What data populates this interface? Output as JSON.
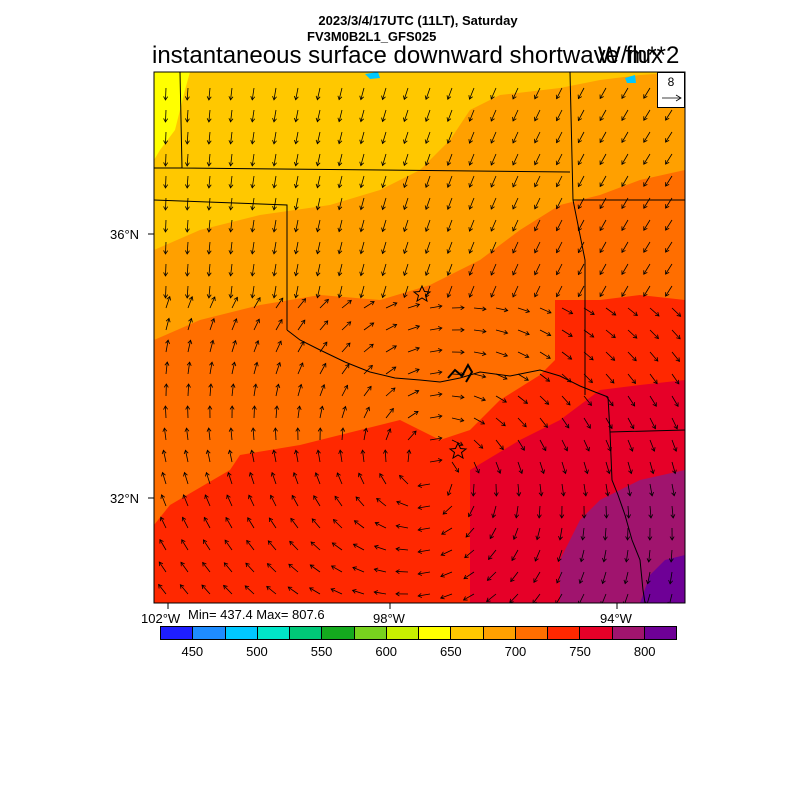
{
  "header": {
    "run_title": "2023/3/4/17UTC (11LT), Saturday",
    "model_name": "FV3M0B2L1_GFS025",
    "main_title": "instantaneous surface downward shortwave flux",
    "units": "W/m**2"
  },
  "reference_vector": {
    "magnitude": "8"
  },
  "lat_labels": [
    "36°N",
    "32°N"
  ],
  "lon_labels": [
    "102°W",
    "98°W",
    "94°W"
  ],
  "stats": "Min= 437.4 Max= 807.6",
  "colorbar": {
    "colors": [
      "#1e1eff",
      "#1e8cff",
      "#00c8ff",
      "#00e6c8",
      "#00c878",
      "#14aa1e",
      "#78d21e",
      "#c8f000",
      "#ffff00",
      "#ffc800",
      "#ffa000",
      "#ff6e00",
      "#ff2800",
      "#e60028",
      "#a0146e",
      "#6e0096"
    ],
    "labels": [
      "450",
      "500",
      "550",
      "600",
      "650",
      "700",
      "750",
      "800"
    ]
  },
  "map": {
    "field_colors": {
      "band_650": "#ffc800",
      "band_700": "#ffa000",
      "band_725": "#ff6e00",
      "band_750": "#ff2800",
      "band_775": "#e60028",
      "band_790": "#a0146e",
      "band_800": "#6e0096",
      "band_yellow": "#ffff00"
    },
    "stations": [
      "star-okc",
      "star-dfw"
    ]
  }
}
